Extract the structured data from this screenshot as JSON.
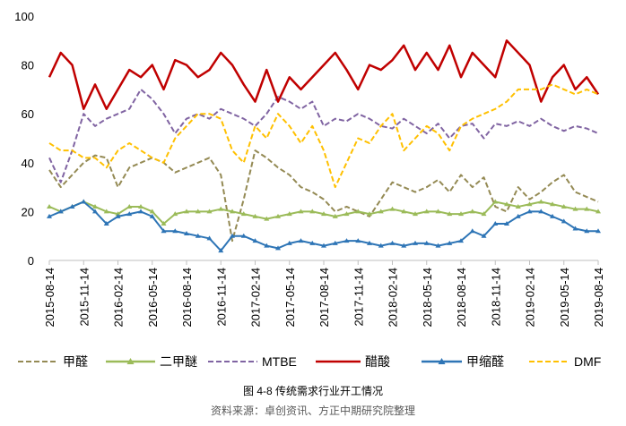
{
  "chart_data": {
    "type": "line",
    "caption": "图 4-8  传统需求行业开工情况",
    "source": "资料来源：卓创资讯、方正中期研究院整理",
    "categories": [
      "2015-08-14",
      null,
      null,
      "2015-11-14",
      null,
      null,
      "2016-02-14",
      null,
      null,
      "2016-05-14",
      null,
      null,
      "2016-08-14",
      null,
      null,
      "2016-11-14",
      null,
      null,
      "2017-02-14",
      null,
      null,
      "2017-05-14",
      null,
      null,
      "2017-08-14",
      null,
      null,
      "2017-11-14",
      null,
      null,
      "2018-02-14",
      null,
      null,
      "2018-05-14",
      null,
      null,
      "2018-08-14",
      null,
      null,
      "2018-11-14",
      null,
      null,
      "2019-02-14",
      null,
      null,
      "2019-05-14",
      null,
      null,
      "2019-08-14"
    ],
    "ylim": [
      0,
      100
    ],
    "yticks": [
      0,
      20,
      40,
      60,
      80,
      100
    ],
    "grid": false,
    "legend": "bottom",
    "series": [
      {
        "name": "甲醛",
        "color": "#948a54",
        "dash": true,
        "marker": false,
        "values": [
          37,
          30,
          35,
          40,
          43,
          42,
          30,
          38,
          40,
          42,
          40,
          36,
          38,
          40,
          42,
          35,
          8,
          25,
          45,
          42,
          38,
          35,
          30,
          28,
          25,
          20,
          22,
          20,
          18,
          25,
          32,
          30,
          28,
          30,
          33,
          28,
          35,
          30,
          34,
          22,
          20,
          30,
          25,
          28,
          32,
          35,
          28,
          26,
          24
        ]
      },
      {
        "name": "二甲醚",
        "color": "#9bbb59",
        "dash": false,
        "marker": true,
        "values": [
          22,
          20,
          22,
          24,
          22,
          20,
          19,
          22,
          22,
          20,
          15,
          19,
          20,
          20,
          20,
          21,
          20,
          19,
          18,
          17,
          18,
          19,
          20,
          20,
          19,
          18,
          19,
          20,
          19,
          20,
          21,
          20,
          19,
          20,
          20,
          19,
          19,
          20,
          19,
          24,
          23,
          22,
          23,
          24,
          23,
          22,
          21,
          21,
          20
        ]
      },
      {
        "name": "MTBE",
        "color": "#8064a2",
        "dash": true,
        "marker": false,
        "values": [
          42,
          32,
          45,
          60,
          55,
          58,
          60,
          62,
          70,
          66,
          60,
          52,
          58,
          60,
          58,
          62,
          60,
          58,
          55,
          60,
          67,
          65,
          62,
          65,
          55,
          58,
          57,
          60,
          58,
          55,
          54,
          58,
          55,
          52,
          56,
          50,
          55,
          56,
          50,
          56,
          55,
          57,
          55,
          58,
          55,
          53,
          55,
          54,
          52
        ]
      },
      {
        "name": "醋酸",
        "color": "#c00000",
        "dash": false,
        "marker": false,
        "values": [
          75,
          85,
          80,
          62,
          72,
          62,
          70,
          78,
          75,
          80,
          70,
          82,
          80,
          75,
          78,
          85,
          80,
          72,
          65,
          78,
          65,
          75,
          70,
          75,
          80,
          85,
          78,
          70,
          80,
          78,
          82,
          88,
          78,
          85,
          78,
          88,
          75,
          85,
          80,
          75,
          90,
          85,
          80,
          65,
          75,
          80,
          70,
          75,
          68
        ]
      },
      {
        "name": "甲缩醛",
        "color": "#2e75b6",
        "dash": false,
        "marker": true,
        "values": [
          18,
          20,
          22,
          24,
          20,
          15,
          18,
          19,
          20,
          18,
          12,
          12,
          11,
          10,
          9,
          4,
          10,
          10,
          8,
          6,
          5,
          7,
          8,
          7,
          6,
          7,
          8,
          8,
          7,
          6,
          7,
          6,
          7,
          7,
          6,
          7,
          8,
          12,
          10,
          15,
          15,
          18,
          20,
          20,
          18,
          16,
          13,
          12,
          12
        ]
      },
      {
        "name": "DMF",
        "color": "#ffc000",
        "dash": true,
        "marker": false,
        "values": [
          48,
          45,
          45,
          42,
          42,
          38,
          45,
          48,
          45,
          42,
          40,
          50,
          55,
          60,
          60,
          58,
          45,
          40,
          55,
          50,
          60,
          55,
          48,
          55,
          45,
          30,
          40,
          50,
          48,
          55,
          60,
          45,
          50,
          55,
          52,
          45,
          55,
          58,
          60,
          62,
          65,
          70,
          70,
          70,
          72,
          70,
          68,
          70,
          68
        ]
      }
    ]
  }
}
